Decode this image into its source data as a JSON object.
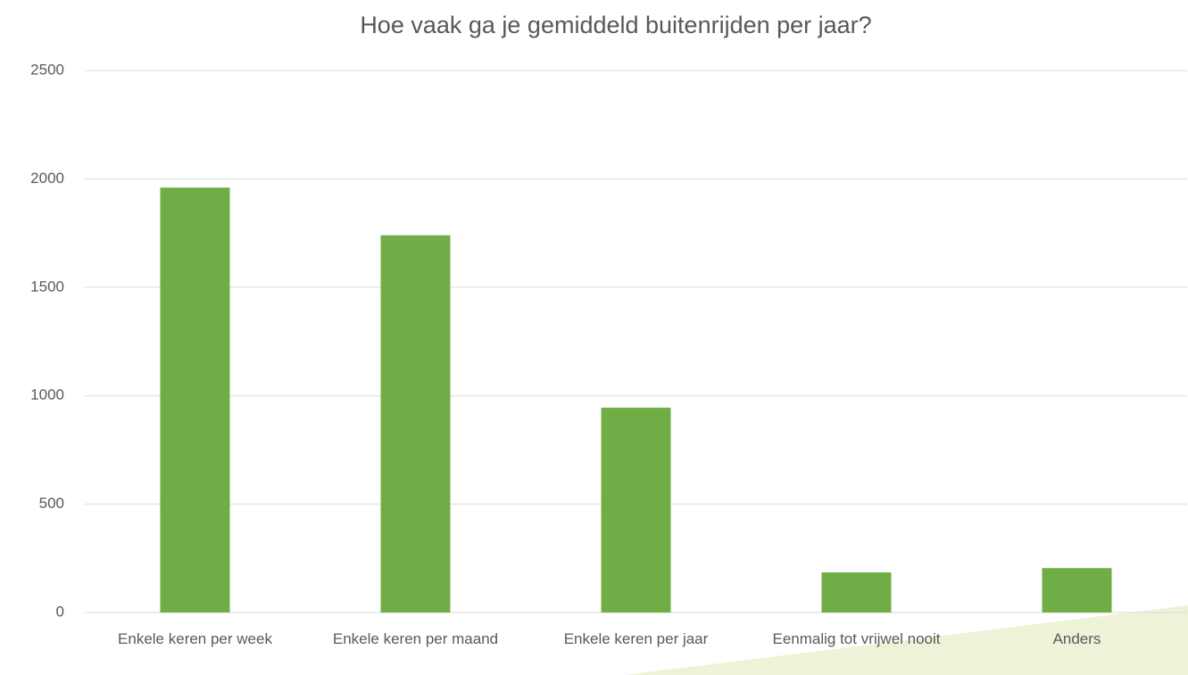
{
  "chart_data": {
    "type": "bar",
    "title": "Hoe vaak ga je gemiddeld buitenrijden per jaar?",
    "categories": [
      "Enkele keren per week",
      "Enkele keren per maand",
      "Enkele keren per jaar",
      "Eenmalig tot vrijwel nooit",
      "Anders"
    ],
    "values": [
      1960,
      1740,
      945,
      185,
      205
    ],
    "color": "#70ad47",
    "ylim": [
      0,
      2500
    ],
    "yticks": [
      0,
      500,
      1000,
      1500,
      2000,
      2500
    ],
    "grid": true
  }
}
